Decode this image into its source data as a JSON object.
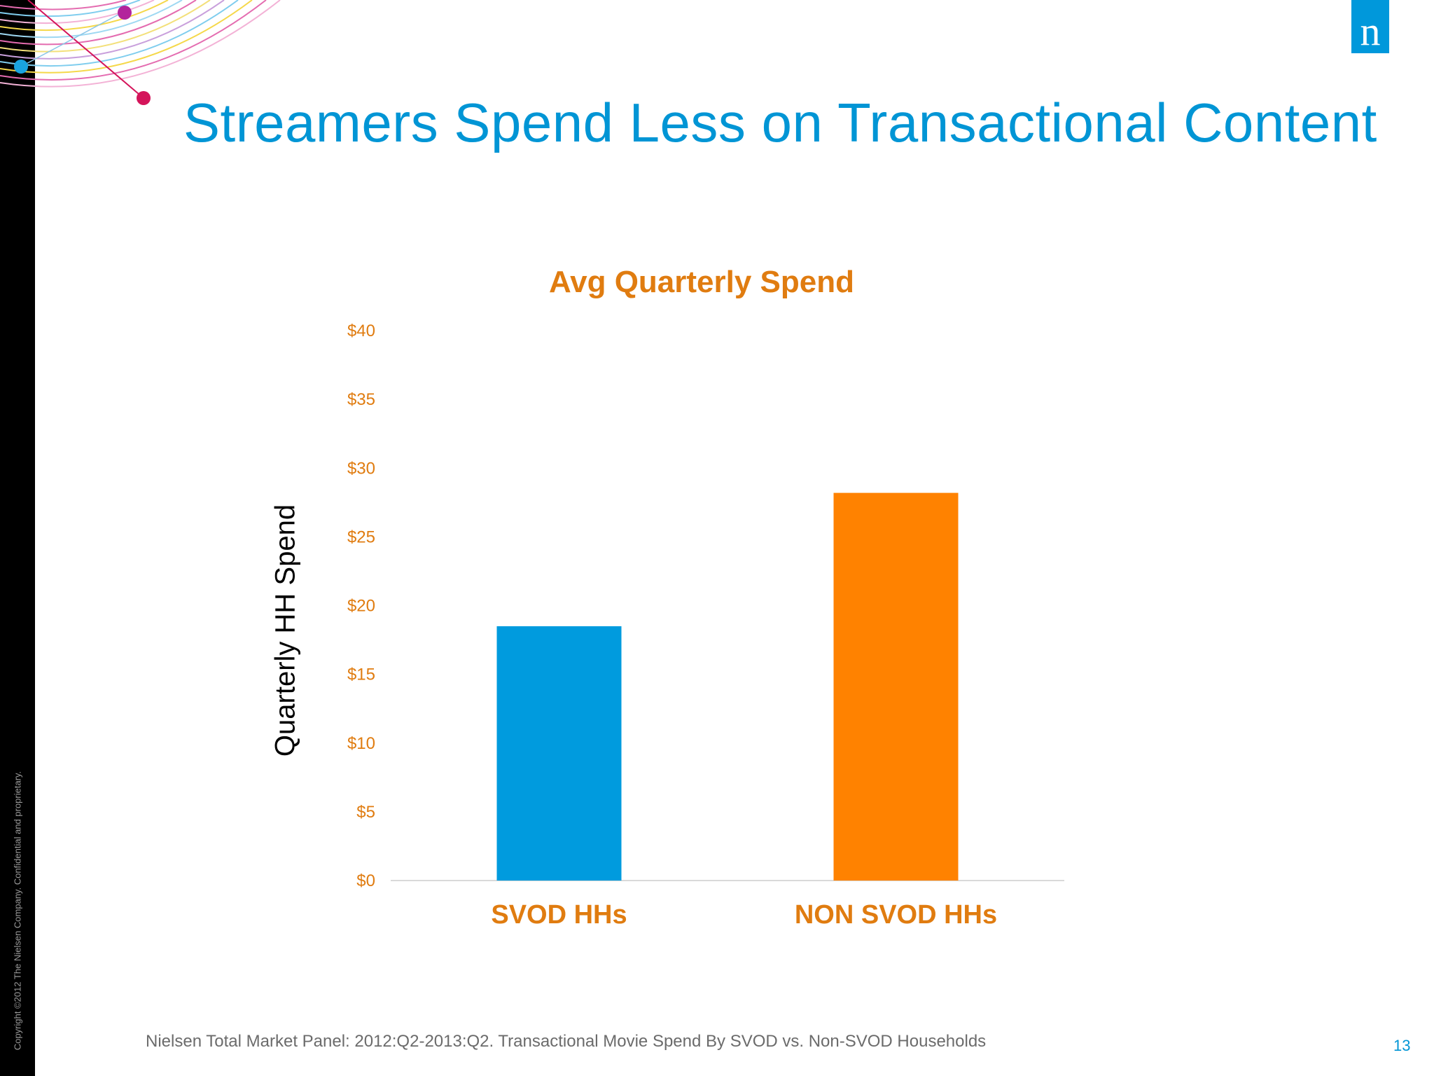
{
  "slide": {
    "title": "Streamers Spend Less on Transactional Content",
    "footer_source": "Nielsen Total Market Panel: 2012:Q2-2013:Q2. Transactional Movie Spend By SVOD vs. Non-SVOD Households",
    "page_number": "13",
    "copyright": "Copyright ©2012 The Nielsen Company. Confidential and proprietary.",
    "logo_letter": "n",
    "logo_color": "#0098db"
  },
  "chart_data": {
    "type": "bar",
    "title": "Avg Quarterly Spend",
    "ylabel": "Quarterly HH Spend",
    "xlabel": "",
    "categories": [
      "SVOD HHs",
      "NON SVOD HHs"
    ],
    "values": [
      18.5,
      28.2
    ],
    "bar_colors": [
      "#009bde",
      "#ff8200"
    ],
    "ylim": [
      0,
      40
    ],
    "yticks": [
      0,
      5,
      10,
      15,
      20,
      25,
      30,
      35,
      40
    ],
    "ytick_labels": [
      "$0",
      "$5",
      "$10",
      "$15",
      "$20",
      "$25",
      "$30",
      "$35",
      "$40"
    ],
    "grid": false,
    "legend": "none",
    "label_color": "#e07c10"
  }
}
